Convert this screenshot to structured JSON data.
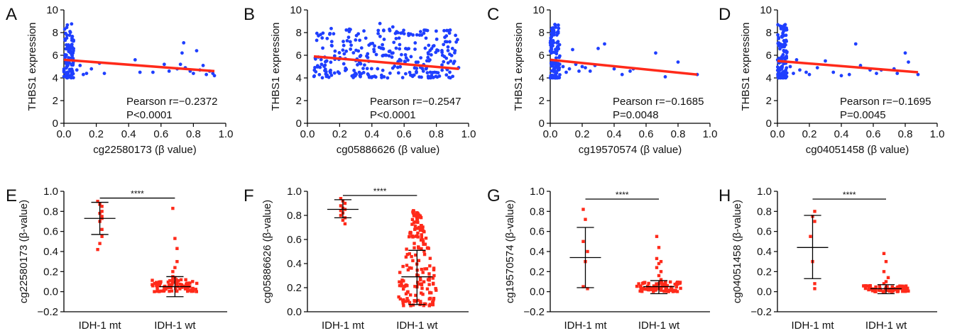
{
  "chart_data": [
    {
      "panel": "A",
      "type": "scatter",
      "xlabel": "cg22580173 (β value)",
      "ylabel": "THBS1 expression",
      "xlim": [
        0,
        1.0
      ],
      "ylim": [
        0,
        10
      ],
      "xticks": [
        "0.0",
        "0.2",
        "0.4",
        "0.6",
        "0.8",
        "1.0"
      ],
      "yticks": [
        "0",
        "2",
        "4",
        "6",
        "8",
        "10"
      ],
      "points_color": "#1f3fff",
      "fit_color": "#ff2a1a",
      "fit": [
        [
          0.0,
          5.6
        ],
        [
          0.93,
          4.6
        ]
      ],
      "annotation": [
        "Pearson r=−0.2372",
        "P<0.0001"
      ],
      "cluster": {
        "x": [
          0.0,
          0.06
        ],
        "y": [
          4.0,
          8.8
        ],
        "n": 110
      },
      "points": [
        [
          0.08,
          4.7
        ],
        [
          0.1,
          5.1
        ],
        [
          0.12,
          4.3
        ],
        [
          0.14,
          4.4
        ],
        [
          0.17,
          4.8
        ],
        [
          0.22,
          5.3
        ],
        [
          0.25,
          4.4
        ],
        [
          0.44,
          5.6
        ],
        [
          0.47,
          4.5
        ],
        [
          0.55,
          4.5
        ],
        [
          0.62,
          5.2
        ],
        [
          0.65,
          4.6
        ],
        [
          0.7,
          4.8
        ],
        [
          0.72,
          5.2
        ],
        [
          0.73,
          6.2
        ],
        [
          0.74,
          7.1
        ],
        [
          0.75,
          4.9
        ],
        [
          0.78,
          4.6
        ],
        [
          0.8,
          4.4
        ],
        [
          0.82,
          6.4
        ],
        [
          0.84,
          4.7
        ],
        [
          0.86,
          5.1
        ],
        [
          0.88,
          4.3
        ],
        [
          0.9,
          4.6
        ],
        [
          0.92,
          4.4
        ],
        [
          0.93,
          4.2
        ]
      ]
    },
    {
      "panel": "B",
      "type": "scatter",
      "xlabel": "cg05886626 (β value)",
      "ylabel": "THBS1 expression",
      "xlim": [
        0,
        1.0
      ],
      "ylim": [
        0,
        10
      ],
      "xticks": [
        "0.0",
        "0.2",
        "0.4",
        "0.6",
        "0.8",
        "1.0"
      ],
      "yticks": [
        "0",
        "2",
        "4",
        "6",
        "8",
        "10"
      ],
      "points_color": "#1f3fff",
      "fit_color": "#ff2a1a",
      "fit": [
        [
          0.04,
          5.9
        ],
        [
          0.94,
          4.8
        ]
      ],
      "annotation": [
        "Pearson r=−0.2547",
        "P<0.0001"
      ],
      "cluster": {
        "x": [
          0.04,
          0.94
        ],
        "y": [
          4.0,
          8.4
        ],
        "n": 300
      },
      "points": [
        [
          0.45,
          8.8
        ],
        [
          0.53,
          8.5
        ],
        [
          0.6,
          7.9
        ],
        [
          0.26,
          8.3
        ],
        [
          0.78,
          6.8
        ],
        [
          0.9,
          6.6
        ]
      ]
    },
    {
      "panel": "C",
      "type": "scatter",
      "xlabel": "cg19570574 (β value)",
      "ylabel": "THBS1 expression",
      "xlim": [
        0,
        1.0
      ],
      "ylim": [
        0,
        10
      ],
      "xticks": [
        "0.0",
        "0.2",
        "0.4",
        "0.6",
        "0.8",
        "1.0"
      ],
      "yticks": [
        "0",
        "2",
        "4",
        "6",
        "8",
        "10"
      ],
      "points_color": "#1f3fff",
      "fit_color": "#ff2a1a",
      "fit": [
        [
          0.0,
          5.6
        ],
        [
          0.92,
          4.3
        ]
      ],
      "annotation": [
        "Pearson r=−0.1685",
        "P=0.0048"
      ],
      "cluster": {
        "x": [
          0.0,
          0.06
        ],
        "y": [
          4.0,
          8.8
        ],
        "n": 120
      },
      "points": [
        [
          0.08,
          5.0
        ],
        [
          0.1,
          4.5
        ],
        [
          0.12,
          4.8
        ],
        [
          0.14,
          6.5
        ],
        [
          0.16,
          5.2
        ],
        [
          0.18,
          4.6
        ],
        [
          0.2,
          5.0
        ],
        [
          0.22,
          4.9
        ],
        [
          0.25,
          4.6
        ],
        [
          0.28,
          5.1
        ],
        [
          0.3,
          6.6
        ],
        [
          0.34,
          7.0
        ],
        [
          0.4,
          4.8
        ],
        [
          0.45,
          4.3
        ],
        [
          0.5,
          4.6
        ],
        [
          0.52,
          4.8
        ],
        [
          0.66,
          6.2
        ],
        [
          0.72,
          4.1
        ],
        [
          0.8,
          5.4
        ],
        [
          0.92,
          4.3
        ]
      ]
    },
    {
      "panel": "D",
      "type": "scatter",
      "xlabel": "cg04051458 (β value)",
      "ylabel": "THBS1 expression",
      "xlim": [
        0,
        1.0
      ],
      "ylim": [
        0,
        10
      ],
      "xticks": [
        "0.0",
        "0.2",
        "0.4",
        "0.6",
        "0.8",
        "1.0"
      ],
      "yticks": [
        "0",
        "2",
        "4",
        "6",
        "8",
        "10"
      ],
      "points_color": "#1f3fff",
      "fit_color": "#ff2a1a",
      "fit": [
        [
          0.0,
          5.5
        ],
        [
          0.88,
          4.5
        ]
      ],
      "annotation": [
        "Pearson r=−0.1695",
        "P=0.0045"
      ],
      "cluster": {
        "x": [
          0.0,
          0.06
        ],
        "y": [
          4.0,
          8.8
        ],
        "n": 115
      },
      "points": [
        [
          0.08,
          5.0
        ],
        [
          0.1,
          4.4
        ],
        [
          0.12,
          5.6
        ],
        [
          0.14,
          4.7
        ],
        [
          0.18,
          4.5
        ],
        [
          0.2,
          4.3
        ],
        [
          0.25,
          4.9
        ],
        [
          0.3,
          5.5
        ],
        [
          0.35,
          4.5
        ],
        [
          0.4,
          4.2
        ],
        [
          0.45,
          4.3
        ],
        [
          0.49,
          7.0
        ],
        [
          0.52,
          5.1
        ],
        [
          0.58,
          4.7
        ],
        [
          0.62,
          4.4
        ],
        [
          0.65,
          4.7
        ],
        [
          0.73,
          4.8
        ],
        [
          0.75,
          4.4
        ],
        [
          0.8,
          6.2
        ],
        [
          0.82,
          5.4
        ],
        [
          0.88,
          4.3
        ]
      ]
    },
    {
      "panel": "E",
      "type": "dot",
      "ylabel": "cg22580173 (β-value)",
      "categories": [
        "IDH-1 mt",
        "IDH-1 wt"
      ],
      "ylim": [
        -0.2,
        1.0
      ],
      "yticks": [
        "−0.2",
        "0.0",
        "0.2",
        "0.4",
        "0.6",
        "0.8",
        "1.0"
      ],
      "significance": "****",
      "points_color": "#ff2a1a",
      "groups": [
        {
          "mean": 0.73,
          "low": 0.57,
          "high": 0.89,
          "values": [
            0.9,
            0.87,
            0.85,
            0.8,
            0.78,
            0.75,
            0.73,
            0.7,
            0.62,
            0.55,
            0.48,
            0.42
          ]
        },
        {
          "mean": 0.05,
          "low": -0.05,
          "high": 0.15,
          "values": [
            0.83,
            0.53,
            0.43,
            0.3,
            0.24,
            0.2,
            0.15,
            0.14,
            0.12,
            0.1
          ],
          "cluster": {
            "y": [
              0.0,
              0.12
            ],
            "n": 80
          }
        }
      ]
    },
    {
      "panel": "F",
      "type": "dot",
      "ylabel": "cg05886626 (β-value)",
      "categories": [
        "IDH-1 mt",
        "IDH-1 wt"
      ],
      "ylim": [
        0.0,
        1.0
      ],
      "yticks": [
        "0.0",
        "0.2",
        "0.4",
        "0.6",
        "0.8",
        "1.0"
      ],
      "significance": "****",
      "points_color": "#ff2a1a",
      "groups": [
        {
          "mean": 0.85,
          "low": 0.78,
          "high": 0.93,
          "values": [
            0.94,
            0.92,
            0.9,
            0.88,
            0.86,
            0.85,
            0.84,
            0.82,
            0.8,
            0.78,
            0.76,
            0.73
          ]
        },
        {
          "mean": 0.29,
          "low": 0.06,
          "high": 0.51,
          "values": [],
          "cluster": {
            "y": [
              0.05,
              0.84
            ],
            "n": 170
          }
        }
      ]
    },
    {
      "panel": "G",
      "type": "dot",
      "ylabel": "cg19570574 (β-value)",
      "categories": [
        "IDH-1 mt",
        "IDH-1 wt"
      ],
      "ylim": [
        -0.2,
        1.0
      ],
      "yticks": [
        "−0.2",
        "0.0",
        "0.2",
        "0.4",
        "0.6",
        "0.8",
        "1.0"
      ],
      "significance": "****",
      "points_color": "#ff2a1a",
      "groups": [
        {
          "mean": 0.34,
          "low": 0.04,
          "high": 0.64,
          "values": [
            0.82,
            0.72,
            0.5,
            0.4,
            0.3,
            0.05,
            0.03
          ]
        },
        {
          "mean": 0.05,
          "low": -0.02,
          "high": 0.11,
          "values": [
            0.55,
            0.44,
            0.33,
            0.3,
            0.28,
            0.24,
            0.2,
            0.16,
            0.12
          ],
          "cluster": {
            "y": [
              0.0,
              0.1
            ],
            "n": 80
          }
        }
      ]
    },
    {
      "panel": "H",
      "type": "dot",
      "ylabel": "cg04051458 (β-value)",
      "categories": [
        "IDH-1 mt",
        "IDH-1 wt"
      ],
      "ylim": [
        -0.2,
        1.0
      ],
      "yticks": [
        "−0.2",
        "0.0",
        "0.2",
        "0.4",
        "0.6",
        "0.8",
        "1.0"
      ],
      "significance": "****",
      "points_color": "#ff2a1a",
      "groups": [
        {
          "mean": 0.44,
          "low": 0.13,
          "high": 0.76,
          "values": [
            0.8,
            0.75,
            0.7,
            0.55,
            0.3,
            0.08,
            0.03
          ]
        },
        {
          "mean": 0.03,
          "low": -0.02,
          "high": 0.07,
          "values": [
            0.38,
            0.3,
            0.2,
            0.14,
            0.1,
            0.08
          ],
          "cluster": {
            "y": [
              0.0,
              0.06
            ],
            "n": 80
          }
        }
      ]
    }
  ]
}
